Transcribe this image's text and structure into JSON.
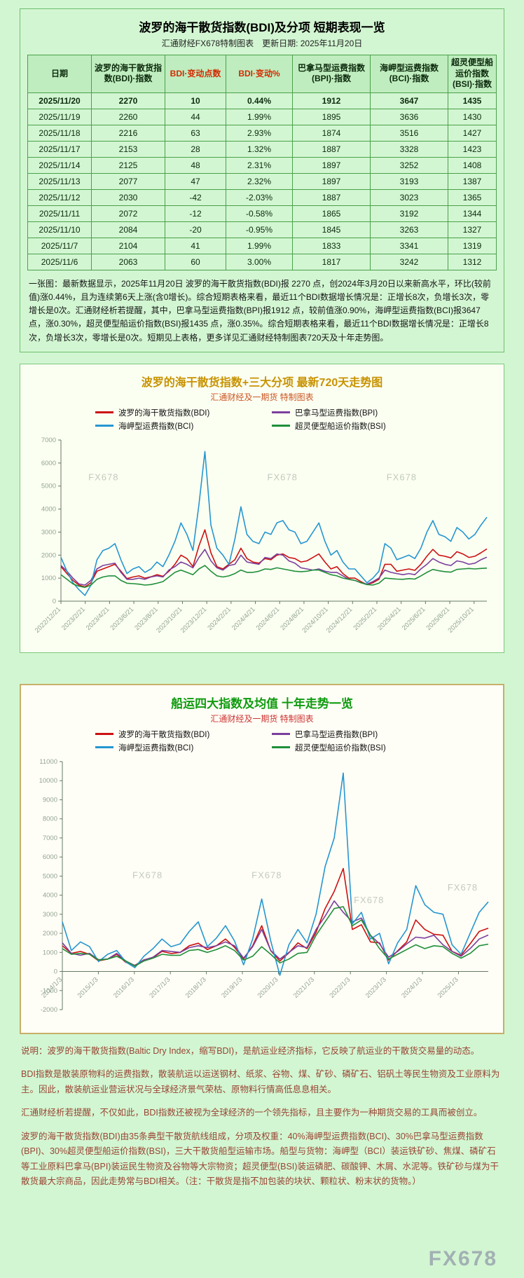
{
  "page": {
    "watermark": "FX678"
  },
  "report": {
    "title": "波罗的海干散货指数(BDI)及分项 短期表现一览",
    "subtitle": "汇通财经FX678特制图表　更新日期: 2025年11月20日",
    "table": {
      "columns": [
        "日期",
        "波罗的海干散货指数(BDI)·指数",
        "BDI·变动点数",
        "BDI·变动%",
        "巴拿马型运费指数(BPI)·指数",
        "海岬型运费指数(BCI)·指数",
        "超灵便型船运价指数(BSI)·指数"
      ],
      "red_columns": [
        2,
        3
      ],
      "rows": [
        [
          "2025/11/20",
          "2270",
          "10",
          "0.44%",
          "1912",
          "3647",
          "1435"
        ],
        [
          "2025/11/19",
          "2260",
          "44",
          "1.99%",
          "1895",
          "3636",
          "1430"
        ],
        [
          "2025/11/18",
          "2216",
          "63",
          "2.93%",
          "1874",
          "3516",
          "1427"
        ],
        [
          "2025/11/17",
          "2153",
          "28",
          "1.32%",
          "1887",
          "3328",
          "1423"
        ],
        [
          "2025/11/14",
          "2125",
          "48",
          "2.31%",
          "1897",
          "3252",
          "1408"
        ],
        [
          "2025/11/13",
          "2077",
          "47",
          "2.32%",
          "1897",
          "3193",
          "1387"
        ],
        [
          "2025/11/12",
          "2030",
          "-42",
          "-2.03%",
          "1887",
          "3023",
          "1365"
        ],
        [
          "2025/11/11",
          "2072",
          "-12",
          "-0.58%",
          "1865",
          "3192",
          "1344"
        ],
        [
          "2025/11/10",
          "2084",
          "-20",
          "-0.95%",
          "1845",
          "3263",
          "1327"
        ],
        [
          "2025/11/7",
          "2104",
          "41",
          "1.99%",
          "1833",
          "3341",
          "1319"
        ],
        [
          "2025/11/6",
          "2063",
          "60",
          "3.00%",
          "1817",
          "3242",
          "1312"
        ]
      ]
    },
    "summary": "一张图：最新数据显示，2025年11月20日 波罗的海干散货指数(BDI)报 2270 点，创2024年3月20日以来新高水平，环比(较前值)涨0.44%，且为连续第6天上涨(含0增长)。综合短期表格来看，最近11个BDI数据增长情况是：正增长8次，负增长3次，零增长是0次。汇通财经析若提醒，其中，巴拿马型运费指数(BPI)报1912 点，较前值涨0.90%，海岬型运费指数(BCI)报3647 点，涨0.30%，超灵便型船运价指数(BSI)报1435 点，涨0.35%。综合短期表格来看，最近11个BDI数据增长情况是：正增长8次，负增长3次，零增长是0次。短期见上表格，更多详见汇通财经特制图表720天及十年走势图。"
  },
  "chart_data": [
    {
      "type": "line",
      "title": "波罗的海干散货指数+三大分项 最新720天走势图",
      "subtitle": "汇通财经及一期货 特制图表",
      "legend_position": "top",
      "grid": false,
      "ylim": [
        0,
        7000
      ],
      "ytick": 1000,
      "x_axis_at": 0,
      "x_label_span": 0.97,
      "x_labels": [
        "2022/12/21",
        "2023/2/21",
        "2023/4/21",
        "2023/6/21",
        "2023/8/21",
        "2023/10/21",
        "2023/12/21",
        "2024/2/21",
        "2024/4/21",
        "2024/6/21",
        "2024/8/21",
        "2024/10/21",
        "2024/12/21",
        "2025/2/21",
        "2025/4/21",
        "2025/6/21",
        "2025/8/21",
        "2025/10/21"
      ],
      "watermarks": [
        [
          0.1,
          0.25
        ],
        [
          0.52,
          0.25
        ],
        [
          0.8,
          0.25
        ]
      ],
      "series": [
        {
          "name": "波罗的海干散货指数(BDI)",
          "color": "#cc1111",
          "values": [
            1500,
            1200,
            900,
            700,
            620,
            800,
            1300,
            1400,
            1500,
            1600,
            1300,
            980,
            1050,
            1100,
            1000,
            1060,
            1150,
            1080,
            1300,
            1600,
            2000,
            1850,
            1500,
            2400,
            3100,
            2100,
            1500,
            1400,
            1600,
            1800,
            2300,
            1850,
            1700,
            1650,
            1850,
            1800,
            2000,
            2050,
            1900,
            1850,
            1700,
            1750,
            1900,
            2050,
            1700,
            1400,
            1500,
            1200,
            1000,
            1000,
            850,
            720,
            800,
            950,
            1600,
            1600,
            1300,
            1350,
            1400,
            1340,
            1600,
            1950,
            2250,
            2000,
            1950,
            1880,
            2150,
            2050,
            1900,
            1950,
            2100,
            2270
          ]
        },
        {
          "name": "巴拿马型运费指数(BPI)",
          "color": "#7b3f9e",
          "values": [
            1550,
            1300,
            1000,
            750,
            700,
            900,
            1400,
            1550,
            1600,
            1650,
            1250,
            950,
            950,
            1000,
            950,
            1050,
            1100,
            1050,
            1350,
            1500,
            1700,
            1600,
            1450,
            1900,
            2250,
            1750,
            1450,
            1350,
            1550,
            1600,
            2000,
            1700,
            1650,
            1600,
            1900,
            1850,
            2050,
            2000,
            1750,
            1650,
            1450,
            1400,
            1350,
            1400,
            1300,
            1250,
            1250,
            1100,
            950,
            900,
            800,
            740,
            850,
            1000,
            1350,
            1250,
            1200,
            1150,
            1200,
            1150,
            1400,
            1600,
            1850,
            1700,
            1600,
            1550,
            1750,
            1700,
            1600,
            1650,
            1800,
            1912
          ]
        },
        {
          "name": "海岬型运费指数(BCI)",
          "color": "#2596d1",
          "values": [
            1900,
            1300,
            800,
            500,
            250,
            700,
            1800,
            2200,
            2300,
            2500,
            1800,
            1200,
            1400,
            1500,
            1250,
            1400,
            1700,
            1500,
            2000,
            2600,
            3400,
            2900,
            2200,
            4200,
            6500,
            3300,
            2300,
            2000,
            1600,
            2700,
            4100,
            2900,
            2600,
            2500,
            3000,
            2900,
            3400,
            3500,
            3100,
            3000,
            2500,
            2600,
            3000,
            3400,
            2600,
            2000,
            2200,
            1700,
            1400,
            1400,
            1100,
            800,
            1000,
            1300,
            2500,
            2300,
            1800,
            1900,
            2000,
            1850,
            2300,
            3000,
            3500,
            2900,
            2800,
            2600,
            3200,
            3000,
            2700,
            2900,
            3300,
            3647
          ]
        },
        {
          "name": "超灵便型船运价指数(BSI)",
          "color": "#1f8f3a",
          "values": [
            1150,
            950,
            750,
            650,
            600,
            700,
            950,
            1050,
            1100,
            1100,
            900,
            780,
            760,
            740,
            700,
            720,
            780,
            850,
            1050,
            1250,
            1350,
            1250,
            1150,
            1400,
            1550,
            1300,
            1100,
            1050,
            1100,
            1200,
            1350,
            1250,
            1250,
            1300,
            1400,
            1380,
            1450,
            1400,
            1350,
            1300,
            1280,
            1300,
            1350,
            1350,
            1250,
            1150,
            1100,
            1000,
            950,
            900,
            800,
            720,
            700,
            780,
            1000,
            980,
            960,
            950,
            980,
            960,
            1100,
            1250,
            1380,
            1320,
            1280,
            1260,
            1380,
            1400,
            1420,
            1400,
            1420,
            1435
          ]
        }
      ]
    },
    {
      "type": "line",
      "title": "船运四大指数及均值 十年走势一览",
      "subtitle": "汇通财经及一期货 特制图表",
      "legend_position": "top",
      "grid": false,
      "ylim": [
        -2000,
        11000
      ],
      "ytick": 1000,
      "x_axis_at": 0,
      "x_label_span": 0.93,
      "x_labels": [
        "2014/1/3",
        "2015/1/3",
        "2016/1/3",
        "2017/1/3",
        "2018/1/3",
        "2019/1/3",
        "2020/1/3",
        "2021/1/3",
        "2022/1/3",
        "2023/1/3",
        "2024/1/3",
        "2025/1/3"
      ],
      "watermarks": [
        [
          0.2,
          0.47
        ],
        [
          0.48,
          0.47
        ],
        [
          0.72,
          0.57
        ],
        [
          0.94,
          0.52
        ]
      ],
      "series": [
        {
          "name": "波罗的海干散货指数(BDI)",
          "color": "#cc1111",
          "values": [
            1350,
            950,
            1050,
            900,
            560,
            650,
            900,
            480,
            320,
            610,
            720,
            1050,
            940,
            1000,
            1350,
            1480,
            1150,
            1350,
            1700,
            1270,
            650,
            1350,
            2400,
            1090,
            550,
            980,
            1500,
            1200,
            2050,
            3300,
            4200,
            5400,
            2200,
            2450,
            1550,
            1500,
            600,
            1080,
            1550,
            2700,
            2200,
            1950,
            1900,
            1050,
            850,
            1450,
            2100,
            2270
          ]
        },
        {
          "name": "巴拿马型运费指数(BPI)",
          "color": "#7b3f9e",
          "values": [
            1500,
            950,
            850,
            950,
            620,
            650,
            950,
            550,
            310,
            600,
            750,
            1100,
            1050,
            1000,
            1250,
            1350,
            1250,
            1350,
            1550,
            1350,
            700,
            1300,
            2200,
            1100,
            650,
            1000,
            1350,
            1250,
            2200,
            2900,
            3700,
            3100,
            2600,
            2800,
            1900,
            1450,
            750,
            1050,
            1450,
            1800,
            1750,
            1900,
            1400,
            1050,
            800,
            1200,
            1700,
            1912
          ]
        },
        {
          "name": "海岬型运费指数(BCI)",
          "color": "#2596d1",
          "values": [
            2600,
            1100,
            1550,
            1300,
            520,
            900,
            1100,
            500,
            200,
            800,
            1200,
            1700,
            1300,
            1450,
            2100,
            2600,
            1300,
            1750,
            2400,
            1600,
            350,
            1700,
            3800,
            1600,
            -200,
            1400,
            2200,
            1500,
            3000,
            5500,
            7000,
            10400,
            2500,
            3100,
            1700,
            2000,
            400,
            1500,
            2200,
            4500,
            3500,
            3100,
            3000,
            1400,
            900,
            2000,
            3100,
            3647
          ]
        },
        {
          "name": "超灵便型船运价指数(BSI)",
          "color": "#1f8f3a",
          "values": [
            1200,
            900,
            950,
            900,
            600,
            650,
            800,
            550,
            280,
            550,
            700,
            900,
            850,
            850,
            1100,
            1150,
            1000,
            1150,
            1350,
            1100,
            600,
            800,
            1300,
            900,
            450,
            650,
            950,
            1000,
            1900,
            2600,
            3300,
            3400,
            2400,
            2700,
            1900,
            1200,
            650,
            900,
            1150,
            1400,
            1200,
            1350,
            1300,
            950,
            700,
            950,
            1350,
            1435
          ]
        }
      ]
    }
  ],
  "footer": {
    "paragraphs": [
      "说明：波罗的海干散货指数(Baltic Dry Index，缩写BDI)，是航运业经济指标，它反映了航运业的干散货交易量的动态。",
      "BDI指数是散装原物料的运费指数，散装航运以运送钢材、纸浆、谷物、煤、矿砂、磷矿石、铝矾土等民生物资及工业原料为主。因此，散装航运业营运状况与全球经济景气荣枯、原物料行情高低息息相关。",
      "汇通财经析若提醒，不仅如此，BDI指数还被视为全球经济的一个领先指标，且主要作为一种期货交易的工具而被创立。",
      "波罗的海干散货指数(BDI)由35条典型干散货航线组成，分项及权重：40%海岬型运费指数(BCI)、30%巴拿马型运费指数(BPI)、30%超灵便型船运价指数(BSI)，三大干散货船型运输市场。船型与货物：海岬型（BCI）装运铁矿砂、焦煤、磷矿石等工业原料巴拿马(BPI)装运民生物资及谷物等大宗物资；超灵便型(BSI)装运磷肥、碳酸钾、木屑、水泥等。铁矿砂与煤为干散货最大宗商品，因此走势常与BDI相关。（注：干散货是指不加包装的块状、颗粒状、粉末状的货物。）"
    ],
    "watermark": "FX678"
  }
}
